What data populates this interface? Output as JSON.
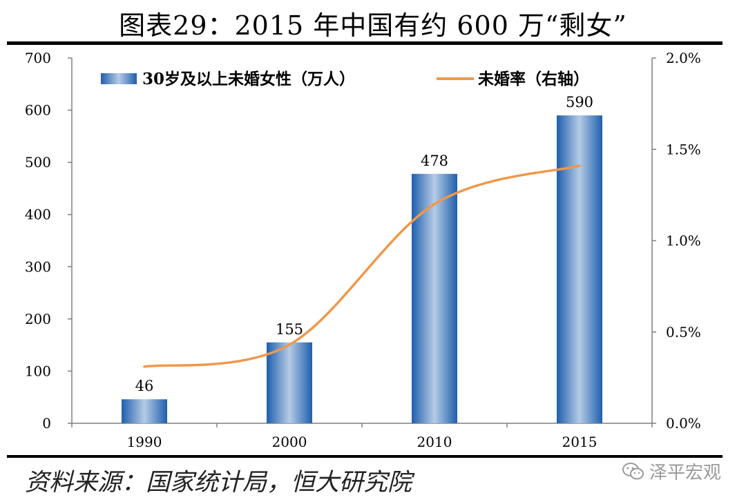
{
  "title": "图表29：2015 年中国有约 600 万“剩女”",
  "source": "资料来源：国家统计局，恒大研究院",
  "watermark": {
    "text": "泽平宏观",
    "icon": "wechat-icon"
  },
  "colors": {
    "bar_dark": "#1f5fad",
    "bar_light": "#b5cbe6",
    "line": "#f0974a",
    "axis": "#7f7f7f"
  },
  "chart_data": {
    "type": "bar",
    "categories": [
      "1990",
      "2000",
      "2010",
      "2015"
    ],
    "series": [
      {
        "name": "30岁及以上未婚女性（万人）",
        "type": "bar",
        "axis": "left",
        "values": [
          46,
          155,
          478,
          590
        ]
      },
      {
        "name": "未婚率（右轴）",
        "type": "line",
        "axis": "right",
        "values": [
          0.31,
          0.43,
          1.2,
          1.41
        ]
      }
    ],
    "data_labels": [
      "46",
      "155",
      "478",
      "590"
    ],
    "ylim": [
      0,
      700
    ],
    "y_ticks": [
      "0",
      "100",
      "200",
      "300",
      "400",
      "500",
      "600",
      "700"
    ],
    "y2lim": [
      0,
      2.0
    ],
    "y2_ticks": [
      "0.0%",
      "0.5%",
      "1.0%",
      "1.5%",
      "2.0%"
    ],
    "grid": false,
    "legend_position": "top"
  }
}
